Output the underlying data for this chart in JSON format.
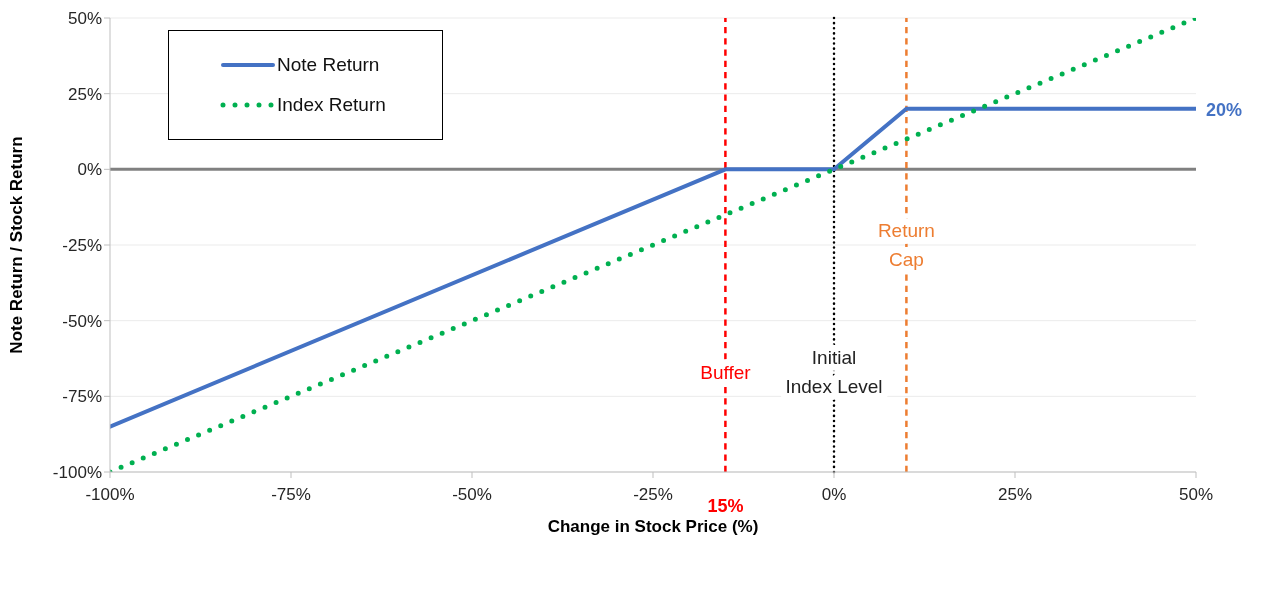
{
  "chart_data": {
    "type": "line",
    "xlabel": "Change in Stock Price (%)",
    "ylabel": "Note Return / Stock Return",
    "series": [
      {
        "name": "Note Return",
        "color": "#4472c4",
        "line_style": "solid",
        "x": [
          -100,
          -15,
          0,
          10,
          50
        ],
        "values": [
          -85,
          0,
          0,
          20,
          20
        ]
      },
      {
        "name": "Index Return",
        "color": "#00b050",
        "line_style": "dotted",
        "x": [
          -100,
          50
        ],
        "values": [
          -100,
          50
        ]
      }
    ],
    "xlim": [
      -100,
      50
    ],
    "xticks": [
      {
        "value": -100,
        "label": "-100%"
      },
      {
        "value": -75,
        "label": "-75%"
      },
      {
        "value": -50,
        "label": "-50%"
      },
      {
        "value": -25,
        "label": "-25%"
      },
      {
        "value": 0,
        "label": "0%"
      },
      {
        "value": 25,
        "label": "25%"
      },
      {
        "value": 50,
        "label": "50%"
      }
    ],
    "ylim": [
      -100,
      50
    ],
    "yticks": [
      {
        "value": -100,
        "label": "-100%"
      },
      {
        "value": -75,
        "label": "-75%"
      },
      {
        "value": -50,
        "label": "-50%"
      },
      {
        "value": -25,
        "label": "-25%"
      },
      {
        "value": 0,
        "label": "0%"
      },
      {
        "value": 25,
        "label": "25%"
      },
      {
        "value": 50,
        "label": "50%"
      }
    ],
    "ref_lines": [
      {
        "axis": "y",
        "value": 0,
        "color": "#808080",
        "line_style": "solid"
      },
      {
        "axis": "x",
        "value": -15,
        "label": "Buffer",
        "color": "#ff0000",
        "line_style": "dashed"
      },
      {
        "axis": "x",
        "value": 0,
        "label": "Initial\nIndex Level",
        "color": "#000000",
        "line_style": "dotted"
      },
      {
        "axis": "x",
        "value": 10,
        "label": "Return\nCap",
        "color": "#ed7d31",
        "line_style": "dashed"
      }
    ],
    "annotations": [
      {
        "text": "15%",
        "x": -15,
        "y": -100
      },
      {
        "text": "20%",
        "x": 50,
        "y": 20
      }
    ],
    "grid": "y",
    "legend": "top left"
  }
}
